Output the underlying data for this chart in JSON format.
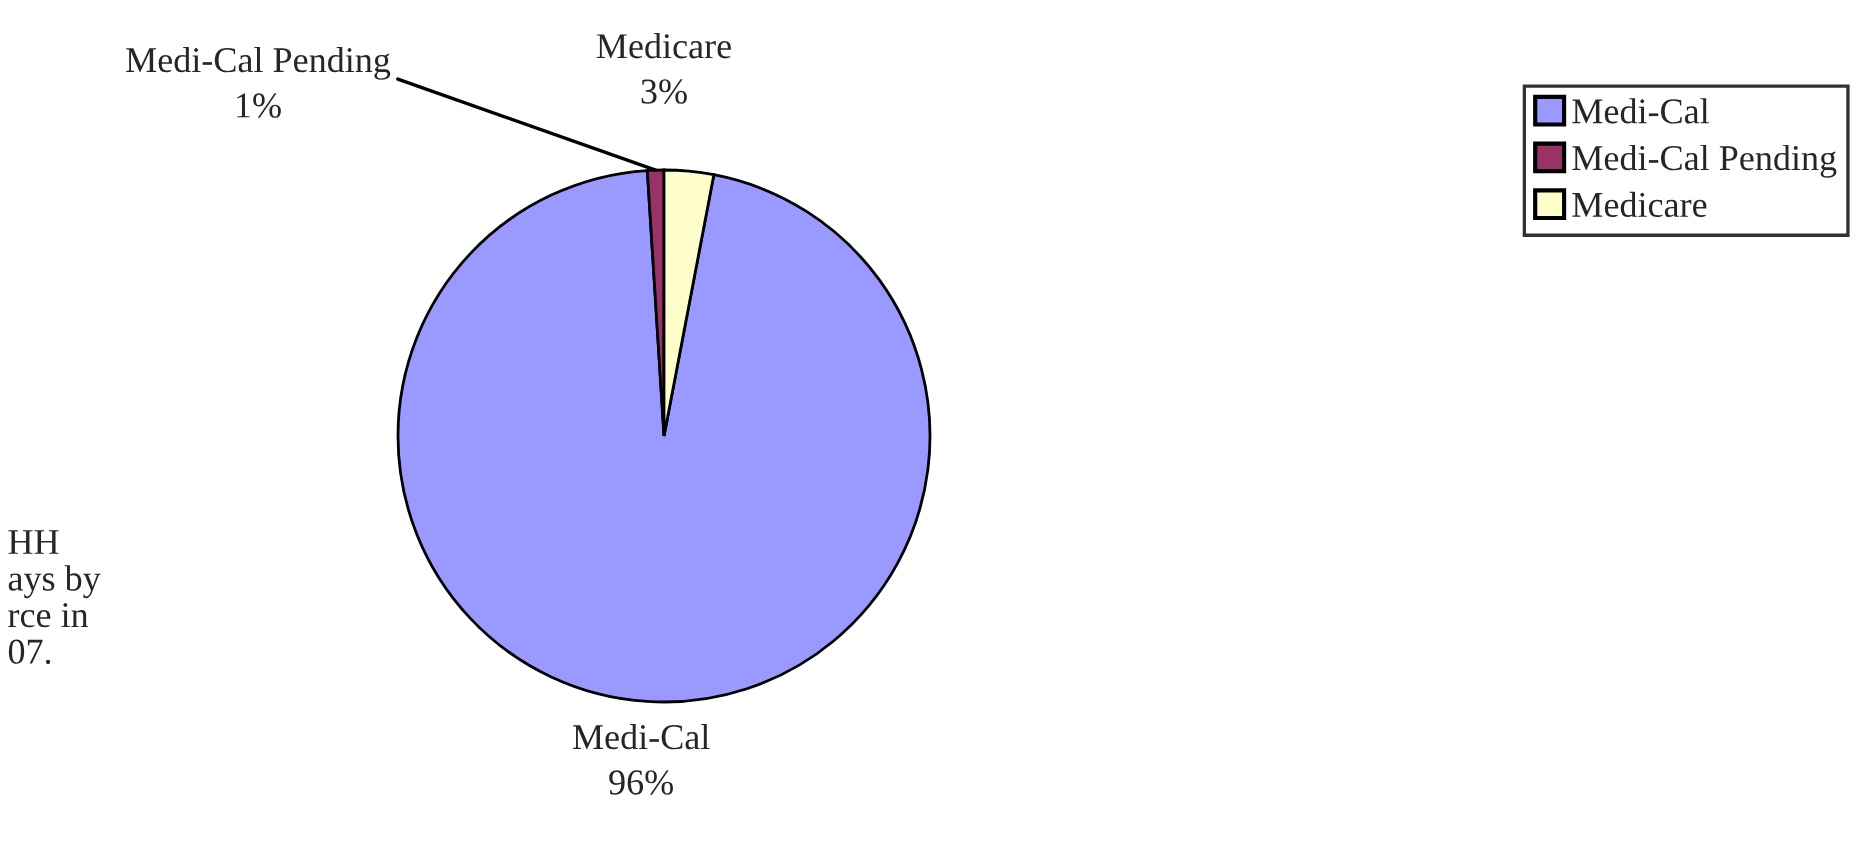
{
  "chart_data": {
    "type": "pie",
    "categories": [
      "Medi-Cal",
      "Medi-Cal Pending",
      "Medicare"
    ],
    "values": [
      96,
      1,
      3
    ],
    "colors": [
      "#9999ff",
      "#993366",
      "#ffffcc"
    ],
    "value_labels": [
      "96%",
      "1%",
      "3%"
    ],
    "legend": "top right",
    "annotations": [
      "HH\nays by\nrce in\n07."
    ]
  }
}
